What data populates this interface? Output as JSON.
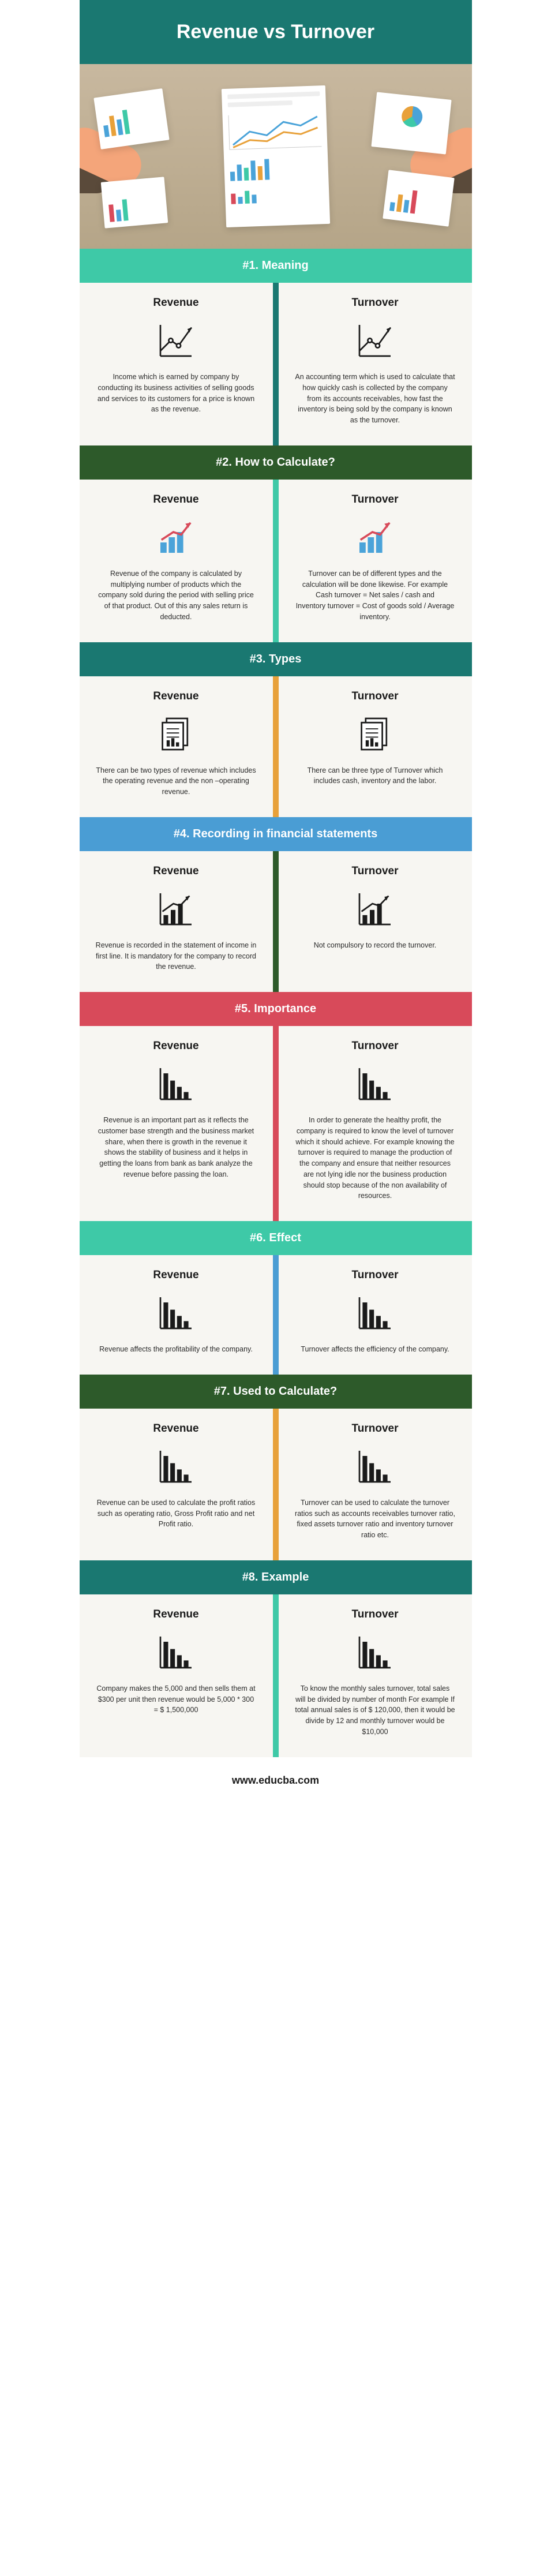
{
  "page_title": "Revenue vs Turnover",
  "footer_text": "www.educba.com",
  "header_bg": "#1a7871",
  "col_left_title": "Revenue",
  "col_right_title": "Turnover",
  "body_bg": "#f7f6f2",
  "sections": [
    {
      "title": "#1. Meaning",
      "header_color": "#3ec9a7",
      "divider_color": "#1a7871",
      "icon": "line-up",
      "left": "Income which is earned by company by conducting its business activities of selling goods and services to its customers for a price is known as the revenue.",
      "right": "An accounting term which is used to calculate that how quickly cash is collected by the company from its accounts receivables, how fast the inventory is being sold by the company is known as the turnover."
    },
    {
      "title": "#2. How to Calculate?",
      "header_color": "#2d5a2a",
      "divider_color": "#3ec9a7",
      "icon": "chart-arrow",
      "left": "Revenue of the company is calculated by multiplying number of products which the company sold during the period with selling price of that product. Out of this any sales return is deducted.",
      "right": "Turnover can be of different types and the calculation will be done likewise. For example Cash turnover = Net sales / cash and\nInventory turnover = Cost of goods sold / Average inventory."
    },
    {
      "title": "#3. Types",
      "header_color": "#1a7871",
      "divider_color": "#e8a13a",
      "icon": "documents",
      "left": "There can be two types of revenue which includes the operating revenue and the non –operating revenue.",
      "right": "There can be three type of Turnover which includes cash, inventory and the labor."
    },
    {
      "title": "#4. Recording in financial statements",
      "header_color": "#4a9dd4",
      "divider_color": "#2d5a2a",
      "icon": "bar-growth",
      "left": "Revenue is recorded in the statement of income in first line. It is mandatory for the company to record the revenue.",
      "right": "Not compulsory to record the turnover."
    },
    {
      "title": "#5. Importance",
      "header_color": "#d84a5a",
      "divider_color": "#d84a5a",
      "icon": "bar-decline",
      "left": "Revenue is an important part as it reflects the customer base strength and the business market share, when there is growth in the revenue it shows the stability of business and it helps in getting the loans from bank as bank analyze the revenue before passing the loan.",
      "right": "In order to generate the healthy profit, the company is required to know the level of turnover which it should achieve. For example knowing the turnover is required to manage the production of the company and ensure that neither resources are not lying idle nor the business production should stop because of the non availability of resources."
    },
    {
      "title": "#6. Effect",
      "header_color": "#3ec9a7",
      "divider_color": "#4a9dd4",
      "icon": "bar-decline",
      "left": "Revenue affects the profitability of the company.",
      "right": "Turnover affects the efficiency of the company."
    },
    {
      "title": "#7. Used to Calculate?",
      "header_color": "#2d5a2a",
      "divider_color": "#e8a13a",
      "icon": "bar-decline",
      "left": "Revenue can be used to calculate the profit ratios such as operating ratio, Gross Profit ratio and net Profit ratio.",
      "right": "Turnover can be used to calculate the turnover ratios such as accounts receivables turnover ratio, fixed assets turnover ratio and inventory turnover ratio etc."
    },
    {
      "title": "#8. Example",
      "header_color": "#1a7871",
      "divider_color": "#3ec9a7",
      "icon": "bar-decline",
      "left": "Company makes the 5,000 and then sells them at $300 per unit then revenue would be 5,000 * 300 = $ 1,500,000",
      "right": "To know the monthly sales turnover, total sales will be divided by number of month For example If total annual sales is of $ 120,000, then it would be divide by 12 and monthly turnover would be $10,000"
    }
  ]
}
